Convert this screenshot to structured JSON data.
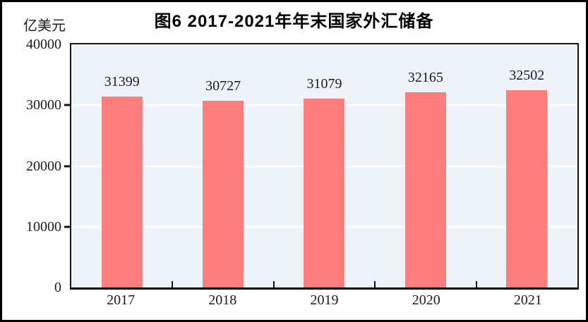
{
  "unit_label": "亿美元",
  "chart_data": {
    "type": "bar",
    "title": "图6  2017-2021年年末国家外汇储备",
    "categories": [
      "2017",
      "2018",
      "2019",
      "2020",
      "2021"
    ],
    "values": [
      31399,
      30727,
      31079,
      32165,
      32502
    ],
    "ylabel": "亿美元",
    "xlabel": "",
    "ylim": [
      0,
      40000
    ],
    "yticks": [
      0,
      10000,
      20000,
      30000,
      40000
    ],
    "grid": true,
    "legend": "none",
    "colors": {
      "bar": "#FD7C7C",
      "plot_background": "#EDF3F8",
      "gridline": "#FFFFFF",
      "frame": "#000000",
      "text": "#1B1B1B"
    }
  }
}
